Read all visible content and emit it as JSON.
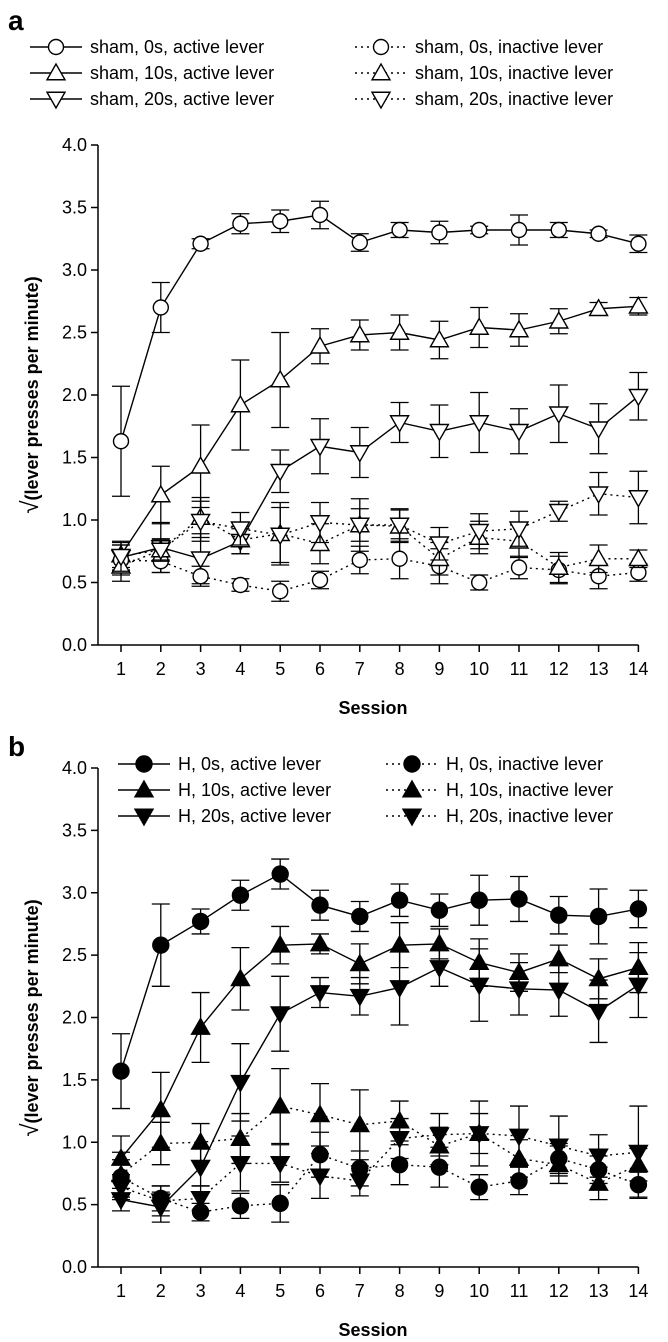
{
  "chart_data": [
    {
      "type": "line",
      "panel_label": "a",
      "xlabel": "Session",
      "ylabel": "(lever presses per minute)",
      "ylabel_prefix": "√",
      "ylim": [
        0,
        4.0
      ],
      "yticks": [
        "0.0",
        "0.5",
        "1.0",
        "1.5",
        "2.0",
        "2.5",
        "3.0",
        "3.5",
        "4.0"
      ],
      "x": [
        1,
        2,
        3,
        4,
        5,
        6,
        7,
        8,
        9,
        10,
        11,
        12,
        13,
        14
      ],
      "xticks": [
        "1",
        "2",
        "3",
        "4",
        "5",
        "6",
        "7",
        "8",
        "9",
        "10",
        "11",
        "12",
        "13",
        "14"
      ],
      "grid": false,
      "legend_placement": "top",
      "series": [
        {
          "name": "sham, 0s, active lever",
          "marker": "circle",
          "filled": false,
          "line": "solid",
          "values": [
            1.63,
            2.7,
            3.21,
            3.37,
            3.39,
            3.44,
            3.22,
            3.32,
            3.3,
            3.32,
            3.32,
            3.32,
            3.29,
            3.21
          ],
          "errors": [
            0.44,
            0.2,
            0.04,
            0.08,
            0.09,
            0.11,
            0.07,
            0.06,
            0.09,
            0.03,
            0.12,
            0.06,
            0.03,
            0.07
          ]
        },
        {
          "name": "sham, 10s, active lever",
          "marker": "triangle-up",
          "filled": false,
          "line": "solid",
          "values": [
            0.72,
            1.2,
            1.43,
            1.92,
            2.12,
            2.39,
            2.48,
            2.5,
            2.44,
            2.54,
            2.52,
            2.59,
            2.69,
            2.71
          ],
          "errors": [
            0.1,
            0.23,
            0.33,
            0.36,
            0.38,
            0.14,
            0.12,
            0.14,
            0.15,
            0.16,
            0.13,
            0.1,
            0.05,
            0.07
          ]
        },
        {
          "name": "sham, 20s, active lever",
          "marker": "triangle-down",
          "filled": false,
          "line": "solid",
          "values": [
            0.7,
            0.78,
            0.69,
            0.83,
            1.39,
            1.59,
            1.54,
            1.78,
            1.71,
            1.78,
            1.71,
            1.85,
            1.73,
            1.99
          ],
          "errors": [
            0.1,
            0.2,
            0.2,
            0.1,
            0.17,
            0.22,
            0.2,
            0.16,
            0.21,
            0.24,
            0.18,
            0.23,
            0.2,
            0.19
          ]
        },
        {
          "name": "sham, 0s, inactive lever",
          "marker": "circle",
          "filled": false,
          "line": "dotted",
          "values": [
            0.68,
            0.67,
            0.55,
            0.48,
            0.43,
            0.52,
            0.68,
            0.69,
            0.63,
            0.5,
            0.62,
            0.6,
            0.55,
            0.58
          ],
          "errors": [
            0.12,
            0.09,
            0.08,
            0.05,
            0.08,
            0.07,
            0.11,
            0.16,
            0.14,
            0.06,
            0.09,
            0.11,
            0.1,
            0.07
          ]
        },
        {
          "name": "sham, 10s, inactive lever",
          "marker": "triangle-up",
          "filled": false,
          "line": "dotted",
          "values": [
            0.63,
            0.76,
            1.02,
            0.84,
            0.89,
            0.81,
            0.96,
            0.95,
            0.69,
            0.86,
            0.83,
            0.62,
            0.69,
            0.69
          ],
          "errors": [
            0.12,
            0.08,
            0.16,
            0.11,
            0.25,
            0.16,
            0.21,
            0.13,
            0.13,
            0.13,
            0.13,
            0.12,
            0.11,
            0.07
          ]
        },
        {
          "name": "sham, 20s, inactive lever",
          "marker": "triangle-down",
          "filled": false,
          "line": "dotted",
          "values": [
            0.71,
            0.76,
            0.99,
            0.93,
            0.88,
            0.98,
            0.96,
            0.96,
            0.81,
            0.91,
            0.93,
            1.07,
            1.21,
            1.18
          ],
          "errors": [
            0.12,
            0.09,
            0.16,
            0.13,
            0.22,
            0.16,
            0.13,
            0.13,
            0.13,
            0.14,
            0.14,
            0.08,
            0.17,
            0.21
          ]
        }
      ]
    },
    {
      "type": "line",
      "panel_label": "b",
      "xlabel": "Session",
      "ylabel": "(lever presses per minute)",
      "ylabel_prefix": "√",
      "ylim": [
        0,
        4.0
      ],
      "yticks": [
        "0.0",
        "0.5",
        "1.0",
        "1.5",
        "2.0",
        "2.5",
        "3.0",
        "3.5",
        "4.0"
      ],
      "x": [
        1,
        2,
        3,
        4,
        5,
        6,
        7,
        8,
        9,
        10,
        11,
        12,
        13,
        14
      ],
      "xticks": [
        "1",
        "2",
        "3",
        "4",
        "5",
        "6",
        "7",
        "8",
        "9",
        "10",
        "11",
        "12",
        "13",
        "14"
      ],
      "grid": false,
      "legend_placement": "top",
      "series": [
        {
          "name": "H, 0s, active lever",
          "marker": "circle",
          "filled": true,
          "line": "solid",
          "values": [
            1.57,
            2.58,
            2.77,
            2.98,
            3.15,
            2.9,
            2.81,
            2.94,
            2.86,
            2.94,
            2.95,
            2.82,
            2.81,
            2.87
          ],
          "errors": [
            0.3,
            0.33,
            0.1,
            0.12,
            0.12,
            0.12,
            0.12,
            0.13,
            0.13,
            0.2,
            0.18,
            0.15,
            0.22,
            0.15
          ]
        },
        {
          "name": "H, 10s, active lever",
          "marker": "triangle-up",
          "filled": true,
          "line": "solid",
          "values": [
            0.87,
            1.26,
            1.92,
            2.31,
            2.58,
            2.59,
            2.43,
            2.58,
            2.59,
            2.44,
            2.36,
            2.47,
            2.31,
            2.4
          ],
          "errors": [
            0.18,
            0.3,
            0.28,
            0.25,
            0.15,
            0.08,
            0.16,
            0.18,
            0.12,
            0.19,
            0.15,
            0.11,
            0.16,
            0.2
          ]
        },
        {
          "name": "H, 20s, active lever",
          "marker": "triangle-down",
          "filled": true,
          "line": "solid",
          "values": [
            0.54,
            0.48,
            0.8,
            1.48,
            2.03,
            2.2,
            2.17,
            2.24,
            2.4,
            2.26,
            2.23,
            2.22,
            2.05,
            2.26
          ],
          "errors": [
            0.09,
            0.12,
            0.15,
            0.31,
            0.3,
            0.12,
            0.15,
            0.3,
            0.15,
            0.29,
            0.21,
            0.21,
            0.25,
            0.26
          ]
        },
        {
          "name": "H, 0s, inactive lever",
          "marker": "circle",
          "filled": true,
          "line": "dotted",
          "values": [
            0.72,
            0.55,
            0.44,
            0.49,
            0.51,
            0.9,
            0.79,
            0.82,
            0.8,
            0.64,
            0.69,
            0.87,
            0.78,
            0.66
          ],
          "errors": [
            0.14,
            0.1,
            0.07,
            0.1,
            0.15,
            0.18,
            0.14,
            0.16,
            0.16,
            0.1,
            0.11,
            0.12,
            0.11,
            0.1
          ]
        },
        {
          "name": "H, 10s, inactive lever",
          "marker": "triangle-up",
          "filled": true,
          "line": "dotted",
          "values": [
            0.74,
            0.99,
            1.0,
            1.03,
            1.29,
            1.22,
            1.14,
            1.17,
            0.97,
            1.07,
            0.87,
            0.82,
            0.67,
            0.82
          ],
          "errors": [
            0.18,
            0.17,
            0.15,
            0.2,
            0.3,
            0.25,
            0.28,
            0.16,
            0.15,
            0.16,
            0.15,
            0.15,
            0.13,
            0.13
          ]
        },
        {
          "name": "H, 20s, inactive lever",
          "marker": "triangle-down",
          "filled": true,
          "line": "dotted",
          "values": [
            0.64,
            0.53,
            0.55,
            0.83,
            0.83,
            0.73,
            0.69,
            1.03,
            1.06,
            1.07,
            1.05,
            0.97,
            0.89,
            0.92
          ],
          "errors": [
            0.1,
            0.12,
            0.1,
            0.22,
            0.15,
            0.18,
            0.12,
            0.16,
            0.17,
            0.26,
            0.24,
            0.24,
            0.17,
            0.37
          ]
        }
      ]
    }
  ]
}
